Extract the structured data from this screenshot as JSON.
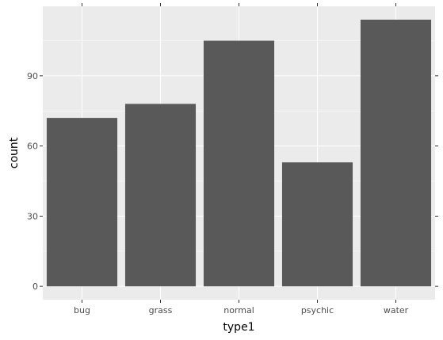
{
  "chart_data": {
    "type": "bar",
    "categories": [
      "bug",
      "grass",
      "normal",
      "psychic",
      "water"
    ],
    "values": [
      72,
      78,
      105,
      53,
      114
    ],
    "xlabel": "type1",
    "ylabel": "count",
    "ylim": [
      -5.7,
      119.7
    ],
    "yticks": [
      0,
      30,
      60,
      90
    ],
    "ytick_labels": [
      "0",
      "30",
      "60",
      "90"
    ],
    "grid": true,
    "legend": "none",
    "colors": {
      "bar": "#595959",
      "panel": "#ebebeb",
      "grid_major": "#ffffff",
      "tick_text": "#4d4d4d",
      "tick_mark": "#333333"
    }
  }
}
